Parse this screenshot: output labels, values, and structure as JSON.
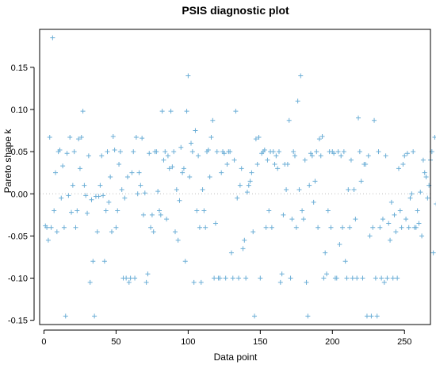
{
  "chart_data": {
    "type": "scatter",
    "title": "PSIS diagnostic plot",
    "xlabel": "Data point",
    "ylabel": "Pareto shape k",
    "xlim": [
      -3,
      268
    ],
    "ylim": [
      -0.155,
      0.195
    ],
    "xticks": [
      0,
      50,
      100,
      150,
      200,
      250
    ],
    "yticks": [
      -0.15,
      -0.1,
      -0.05,
      0.0,
      0.05,
      0.1,
      0.15
    ],
    "ytick_labels": [
      "-0.15",
      "-0.10",
      "-0.05",
      "0.00",
      "0.05",
      "0.10",
      "0.15"
    ],
    "reference_line_y": 0,
    "marker": "+",
    "color": "#6baed6",
    "grid": false,
    "k": [
      -0.038,
      -0.04,
      -0.055,
      0.067,
      -0.04,
      0.185,
      -0.02,
      0.025,
      -0.045,
      0.05,
      0.052,
      -0.005,
      0.033,
      -0.04,
      -0.145,
      0.048,
      -0.002,
      0.067,
      -0.022,
      0.01,
      0.05,
      -0.04,
      -0.02,
      0.065,
      0.03,
      0.067,
      0.098,
      0.01,
      -0.002,
      -0.023,
      0.045,
      -0.105,
      -0.007,
      -0.08,
      -0.145,
      -0.003,
      -0.045,
      -0.003,
      0.01,
      0.045,
      -0.002,
      -0.08,
      -0.02,
      0.05,
      -0.01,
      0.02,
      -0.045,
      0.068,
      0.052,
      -0.04,
      -0.02,
      0.035,
      0.05,
      0.005,
      -0.1,
      -0.005,
      -0.1,
      0.02,
      -0.105,
      -0.1,
      0.025,
      0.05,
      -0.1,
      0.067,
      0.0,
      0.025,
      0.01,
      0.066,
      -0.025,
      0.001,
      -0.105,
      -0.095,
      0.048,
      -0.04,
      -0.025,
      -0.045,
      0.05,
      0.05,
      0.003,
      -0.02,
      -0.025,
      0.098,
      0.04,
      0.05,
      -0.03,
      0.045,
      0.03,
      0.098,
      0.032,
      0.05,
      -0.045,
      0.005,
      -0.055,
      -0.008,
      0.055,
      0.025,
      0.03,
      -0.08,
      0.098,
      0.14,
      0.02,
      0.06,
      0.05,
      -0.105,
      0.075,
      -0.02,
      0.045,
      -0.04,
      -0.105,
      0.005,
      -0.02,
      -0.04,
      0.05,
      0.052,
      0.02,
      0.067,
      0.087,
      -0.1,
      -0.035,
      0.05,
      -0.1,
      -0.1,
      0.025,
      0.05,
      0.048,
      -0.1,
      0.035,
      0.05,
      0.05,
      -0.07,
      -0.1,
      0.04,
      0.098,
      -0.005,
      -0.1,
      0.01,
      0.03,
      -0.065,
      -0.055,
      -0.1,
      0.002,
      0.01,
      0.015,
      0.025,
      -0.045,
      -0.145,
      0.065,
      0.035,
      0.067,
      -0.1,
      0.048,
      0.05,
      0.052,
      -0.04,
      0.04,
      -0.02,
      0.05,
      -0.04,
      0.05,
      0.035,
      0.045,
      0.03,
      0.05,
      -0.105,
      -0.095,
      -0.025,
      0.035,
      0.005,
      0.035,
      0.087,
      -0.1,
      -0.03,
      0.05,
      0.045,
      -0.04,
      0.11,
      0.005,
      0.14,
      -0.02,
      -0.03,
      0.04,
      -0.105,
      -0.145,
      0.01,
      0.048,
      0.045,
      -0.01,
      0.015,
      0.05,
      -0.04,
      0.065,
      0.045,
      0.068,
      -0.1,
      -0.07,
      -0.095,
      -0.02,
      0.05,
      -0.04,
      0.05,
      0.048,
      -0.1,
      -0.1,
      0.05,
      -0.06,
      0.045,
      -0.04,
      0.05,
      -0.08,
      -0.1,
      0.005,
      -0.04,
      0.04,
      -0.1,
      0.005,
      -0.03,
      -0.1,
      0.09,
      0.05,
      0.015,
      -0.1,
      0.035,
      0.035,
      -0.145,
      0.045,
      -0.05,
      -0.145,
      -0.04,
      0.087,
      -0.1,
      -0.145,
      0.05,
      -0.04,
      -0.1,
      -0.03,
      -0.105,
      0.045,
      -0.1,
      -0.035,
      -0.055,
      -0.01,
      -0.1,
      -0.025,
      -0.045,
      -0.1,
      0.03,
      -0.02,
      -0.04,
      0.035,
      0.045,
      -0.03,
      0.048,
      -0.04,
      -0.005,
      0.0,
      0.05,
      -0.04,
      -0.04,
      -0.02,
      -0.035,
      0.002,
      -0.05,
      0.04,
      0.025,
      0.02,
      -0.005,
      0.01,
      0.04,
      0.05,
      -0.07,
      0.067,
      -0.012
    ]
  }
}
